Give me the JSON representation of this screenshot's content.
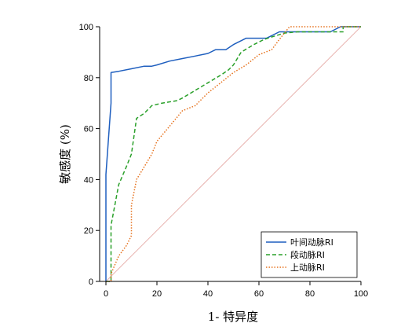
{
  "chart_data": {
    "type": "line",
    "xlabel": "1- 特异度",
    "ylabel": "敏感度 (%)",
    "xlim": [
      0,
      100
    ],
    "ylim": [
      0,
      100
    ],
    "x_ticks": [
      0,
      20,
      40,
      60,
      80,
      100
    ],
    "y_ticks": [
      0,
      20,
      40,
      60,
      80,
      100
    ],
    "grid": false,
    "legend_position": "bottom-right",
    "reference_line": {
      "from": [
        0,
        0
      ],
      "to": [
        100,
        100
      ],
      "color": "#e8b4b0"
    },
    "series": [
      {
        "name": "叶间动脉RI",
        "color": "#1f5fbf",
        "style": "solid",
        "points": [
          [
            0,
            0
          ],
          [
            0,
            42
          ],
          [
            2,
            70
          ],
          [
            2,
            82
          ],
          [
            5,
            82.5
          ],
          [
            10,
            83.5
          ],
          [
            15,
            84.5
          ],
          [
            18,
            84.5
          ],
          [
            20,
            85
          ],
          [
            25,
            86.5
          ],
          [
            30,
            87.5
          ],
          [
            35,
            88.5
          ],
          [
            40,
            89.5
          ],
          [
            43,
            91
          ],
          [
            47,
            91
          ],
          [
            50,
            93
          ],
          [
            55,
            95.5
          ],
          [
            60,
            95.5
          ],
          [
            63,
            95.5
          ],
          [
            68,
            98
          ],
          [
            75,
            98
          ],
          [
            80,
            98
          ],
          [
            85,
            98
          ],
          [
            88,
            98
          ],
          [
            92,
            100
          ],
          [
            100,
            100
          ]
        ]
      },
      {
        "name": "段动脉RI",
        "color": "#2aa02a",
        "style": "dashed",
        "points": [
          [
            0,
            0
          ],
          [
            2,
            0
          ],
          [
            2,
            22
          ],
          [
            5,
            38
          ],
          [
            8,
            45
          ],
          [
            10,
            50
          ],
          [
            12,
            64
          ],
          [
            15,
            66
          ],
          [
            18,
            69
          ],
          [
            22,
            70
          ],
          [
            28,
            71
          ],
          [
            30,
            72
          ],
          [
            35,
            75
          ],
          [
            40,
            78
          ],
          [
            45,
            81
          ],
          [
            48,
            83
          ],
          [
            50,
            85
          ],
          [
            53,
            90
          ],
          [
            58,
            93
          ],
          [
            62,
            95
          ],
          [
            65,
            96
          ],
          [
            70,
            97.5
          ],
          [
            75,
            98
          ],
          [
            80,
            98
          ],
          [
            85,
            98
          ],
          [
            90,
            98
          ],
          [
            93,
            98
          ],
          [
            93,
            100
          ],
          [
            100,
            100
          ]
        ]
      },
      {
        "name": "上动脉RI",
        "color": "#e6721e",
        "style": "dotted",
        "points": [
          [
            0,
            0
          ],
          [
            2,
            0
          ],
          [
            2,
            3
          ],
          [
            5,
            10
          ],
          [
            8,
            14
          ],
          [
            10,
            18
          ],
          [
            10,
            30
          ],
          [
            12,
            40
          ],
          [
            15,
            45
          ],
          [
            18,
            50
          ],
          [
            20,
            55
          ],
          [
            25,
            61
          ],
          [
            30,
            67
          ],
          [
            35,
            69
          ],
          [
            40,
            74
          ],
          [
            45,
            78
          ],
          [
            50,
            82
          ],
          [
            55,
            85
          ],
          [
            60,
            89
          ],
          [
            65,
            91
          ],
          [
            68,
            95
          ],
          [
            72,
            100
          ],
          [
            80,
            100
          ],
          [
            90,
            100
          ],
          [
            95,
            100
          ],
          [
            100,
            100
          ]
        ]
      }
    ]
  }
}
